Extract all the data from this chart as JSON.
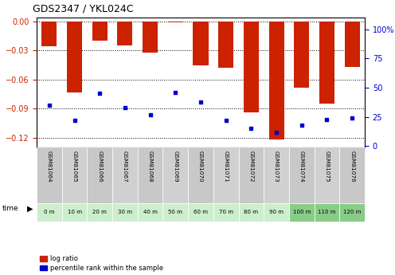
{
  "title": "GDS2347 / YKL024C",
  "samples": [
    "GSM81064",
    "GSM81065",
    "GSM81066",
    "GSM81067",
    "GSM81068",
    "GSM81069",
    "GSM81070",
    "GSM81071",
    "GSM81072",
    "GSM81073",
    "GSM81074",
    "GSM81075",
    "GSM81076"
  ],
  "time_labels": [
    "0 m",
    "10 m",
    "20 m",
    "30 m",
    "40 m",
    "50 m",
    "60 m",
    "70 m",
    "80 m",
    "90 m",
    "100 m",
    "110 m",
    "120 m"
  ],
  "log_ratios": [
    -0.026,
    -0.073,
    -0.02,
    -0.025,
    -0.032,
    -0.001,
    -0.045,
    -0.048,
    -0.094,
    -0.122,
    -0.068,
    -0.085,
    -0.047
  ],
  "percentile_ranks": [
    35,
    22,
    45,
    33,
    27,
    46,
    38,
    22,
    15,
    12,
    18,
    23,
    24
  ],
  "ylim_left": [
    -0.13,
    0.004
  ],
  "ylim_right": [
    -1.2,
    110
  ],
  "yticks_left": [
    0,
    -0.03,
    -0.06,
    -0.09,
    -0.12
  ],
  "yticks_right": [
    0,
    25,
    50,
    75,
    100
  ],
  "bar_color": "#cc2200",
  "dot_color": "#0000cc",
  "label_bg_even": "#c8c8c8",
  "label_bg_odd": "#d0d0d0",
  "time_color_light": "#cceecc",
  "time_color_dark": "#88cc88",
  "left_tick_color": "#cc2200",
  "right_tick_color": "#0000cc"
}
